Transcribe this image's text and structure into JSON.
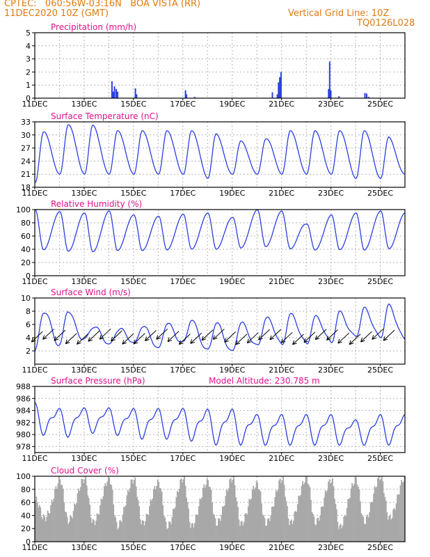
{
  "header": {
    "line1_left": "CPTEC:   060:56W-03:16N   BOA VISTA (RR)",
    "line2_left": "11DEC2020 10Z (GMT)",
    "line2_right": "Vertical Grid Line: 10Z",
    "line3_right": "TQ0126L028"
  },
  "colors": {
    "header": "#e07a10",
    "panel_title": "#e0108c",
    "series": "#2a3fe0",
    "cloud": "#a8a8a8",
    "grid": "#b4b4b4"
  },
  "chart_data": [
    {
      "id": "precip",
      "type": "bar",
      "title": "Precipitation (mm/h)",
      "ylim": [
        0,
        5
      ],
      "yticks": [
        0,
        1,
        2,
        3,
        4,
        5
      ],
      "xticks": [
        "11DEC",
        "13DEC",
        "15DEC",
        "17DEC",
        "19DEC",
        "21DEC",
        "23DEC",
        "25DEC"
      ],
      "bars": [
        {
          "x": 3.1,
          "v": 1.3
        },
        {
          "x": 3.15,
          "v": 0.5
        },
        {
          "x": 3.2,
          "v": 0.9
        },
        {
          "x": 3.27,
          "v": 0.7
        },
        {
          "x": 3.33,
          "v": 0.5
        },
        {
          "x": 4.05,
          "v": 0.75
        },
        {
          "x": 4.1,
          "v": 0.3
        },
        {
          "x": 6.08,
          "v": 0.6
        },
        {
          "x": 6.12,
          "v": 0.3
        },
        {
          "x": 6.45,
          "v": 0.1
        },
        {
          "x": 9.6,
          "v": 0.45
        },
        {
          "x": 9.85,
          "v": 1.2
        },
        {
          "x": 9.9,
          "v": 1.6
        },
        {
          "x": 9.95,
          "v": 2.0
        },
        {
          "x": 9.8,
          "v": 0.3
        },
        {
          "x": 11.88,
          "v": 0.7
        },
        {
          "x": 11.92,
          "v": 2.8
        },
        {
          "x": 11.97,
          "v": 0.6
        },
        {
          "x": 12.3,
          "v": 0.15
        },
        {
          "x": 13.35,
          "v": 0.4
        },
        {
          "x": 13.42,
          "v": 0.35
        },
        {
          "x": 13.5,
          "v": 0.1
        }
      ]
    },
    {
      "id": "temp",
      "type": "line",
      "title": "Surface Temperature (nC)",
      "ylim": [
        18,
        33
      ],
      "yticks": [
        18,
        21,
        24,
        27,
        30,
        33
      ],
      "xticks": [
        "11DEC",
        "13DEC",
        "15DEC",
        "17DEC",
        "19DEC",
        "21DEC",
        "23DEC",
        "25DEC"
      ],
      "min_values": [
        19,
        21,
        21,
        21,
        21,
        21,
        21,
        20,
        21,
        21,
        21,
        21,
        21,
        20,
        20,
        21
      ],
      "max_values": [
        30,
        32,
        33,
        31,
        31,
        31,
        31,
        31,
        29,
        28,
        31,
        31,
        31,
        31,
        31,
        27
      ]
    },
    {
      "id": "rh",
      "type": "line",
      "title": "Relative Humidity (%)",
      "ylim": [
        0,
        100
      ],
      "yticks": [
        0,
        20,
        40,
        60,
        80,
        100
      ],
      "xticks": [
        "11DEC",
        "13DEC",
        "15DEC",
        "17DEC",
        "19DEC",
        "21DEC",
        "23DEC",
        "25DEC"
      ],
      "min_values": [
        40,
        38,
        35,
        38,
        38,
        38,
        40,
        40,
        40,
        45,
        42,
        38,
        40,
        38,
        40,
        42
      ],
      "max_values": [
        100,
        97,
        95,
        98,
        92,
        90,
        93,
        95,
        88,
        100,
        98,
        78,
        92,
        95,
        98,
        95
      ]
    },
    {
      "id": "wind",
      "type": "line",
      "title": "Surface Wind (m/s)",
      "ylim": [
        0,
        10
      ],
      "yticks": [
        2,
        4,
        6,
        8,
        10
      ],
      "xticks": [
        "11DEC",
        "13DEC",
        "15DEC",
        "17DEC",
        "19DEC",
        "21DEC",
        "23DEC",
        "25DEC"
      ],
      "min_values": [
        2,
        3,
        4,
        3,
        3,
        2,
        3,
        2,
        2,
        3,
        3,
        3,
        3,
        4,
        4,
        4
      ],
      "max_values": [
        7,
        9,
        6,
        5,
        6,
        6,
        7,
        6,
        6,
        6,
        8,
        7,
        8,
        8,
        9,
        8
      ]
    },
    {
      "id": "pressure",
      "type": "line",
      "title": "Surface Pressure (hPa)",
      "annotation": "Model Altitude: 230.785 m",
      "ylim": [
        977,
        988
      ],
      "yticks": [
        978,
        980,
        982,
        984,
        986,
        988
      ],
      "xticks": [
        "11DEC",
        "13DEC",
        "15DEC",
        "17DEC",
        "19DEC",
        "21DEC",
        "23DEC",
        "25DEC"
      ],
      "min_values": [
        980,
        979,
        980,
        980,
        979,
        979,
        979,
        978,
        978,
        978,
        978,
        978,
        978,
        978,
        978,
        978
      ],
      "max_values": [
        986,
        985,
        985,
        985,
        985,
        985,
        985,
        985,
        985,
        984,
        984,
        984,
        984,
        983,
        984,
        984
      ]
    },
    {
      "id": "cloud",
      "type": "bar",
      "title": "Cloud Cover (%)",
      "ylim": [
        0,
        100
      ],
      "yticks": [
        0,
        20,
        40,
        60,
        80,
        100
      ],
      "xticks": [
        "11DEC",
        "13DEC",
        "15DEC",
        "17DEC",
        "19DEC",
        "21DEC",
        "23DEC",
        "25DEC"
      ],
      "daily_max": [
        62,
        95,
        96,
        97,
        95,
        90,
        97,
        92,
        97,
        88,
        96,
        97,
        94,
        95,
        99,
        99
      ],
      "daily_min": [
        40,
        30,
        35,
        20,
        30,
        25,
        20,
        30,
        25,
        30,
        25,
        35,
        20,
        25,
        40,
        30
      ]
    }
  ]
}
